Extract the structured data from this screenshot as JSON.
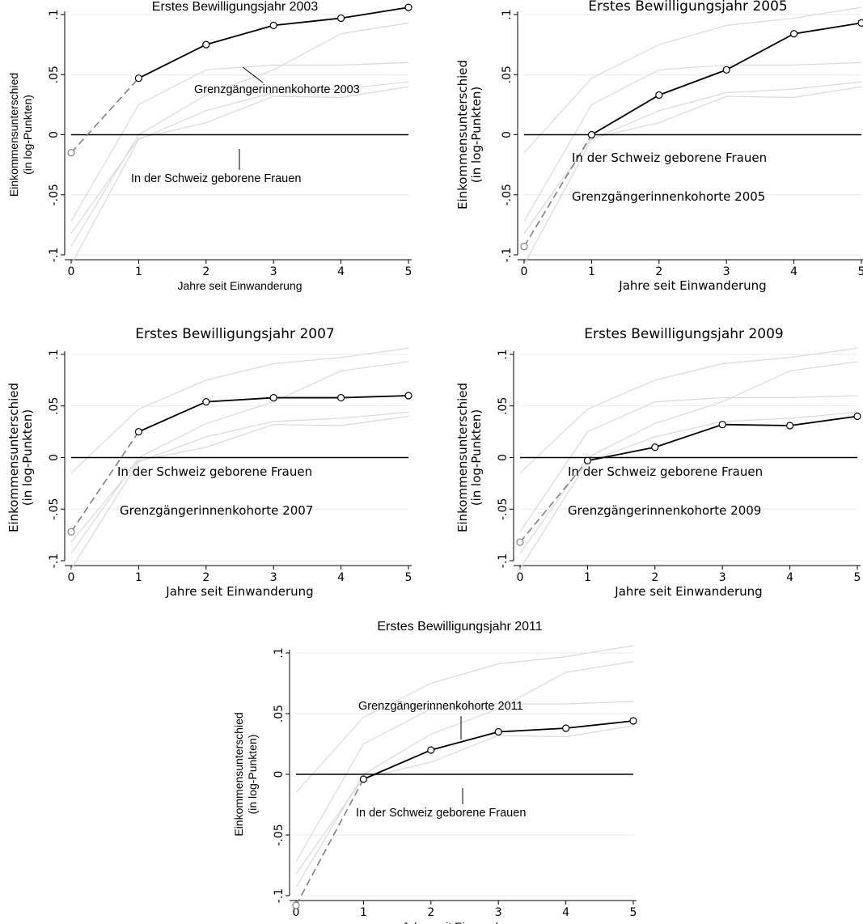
{
  "figure": {
    "ylabel_line1": "Einkommensunterschied",
    "ylabel_line2": "(in log-Punkten)",
    "xlabel": "Jahre seit Einwanderung",
    "x_ticks": [
      "0",
      "1",
      "2",
      "3",
      "4",
      "5"
    ],
    "y_ticks": [
      "-.1",
      "-.05",
      "0",
      ".05",
      ".1"
    ],
    "baseline_label": "In der Schweiz geborene Frauen",
    "colors": {
      "highlight": "#000000",
      "background_series": "#d9d9d9",
      "dashed_segment": "#7f7f7f",
      "grid": "#eaeaea"
    }
  },
  "chart_data": [
    {
      "type": "line",
      "title": "Erstes Bewilligungsjahr 2003",
      "xlabel": "Jahre seit Einwanderung",
      "ylabel": "Einkommensunterschied (in log-Punkten)",
      "x": [
        0,
        1,
        2,
        3,
        4,
        5
      ],
      "xlim": [
        0,
        5
      ],
      "ylim": [
        -0.1,
        0.1
      ],
      "highlight_series": "Grenzgängerinnenkohorte 2003",
      "cohort_label": "Grenzgängerinnenkohorte 2003",
      "baseline_label": "In der Schweiz geborene Frauen",
      "baseline": 0,
      "grid": true,
      "legend": "none",
      "series": [
        {
          "name": "Grenzgängerinnenkohorte 2003",
          "values": [
            -0.015,
            0.047,
            0.075,
            0.091,
            0.097,
            0.106
          ]
        },
        {
          "name": "Grenzgängerinnenkohorte 2005",
          "values": [
            -0.093,
            0.0,
            0.033,
            0.054,
            0.084,
            0.093
          ]
        },
        {
          "name": "Grenzgängerinnenkohorte 2007",
          "values": [
            -0.072,
            0.025,
            0.054,
            0.058,
            0.058,
            0.06
          ]
        },
        {
          "name": "Grenzgängerinnenkohorte 2009",
          "values": [
            -0.082,
            -0.003,
            0.01,
            0.032,
            0.031,
            0.04
          ]
        },
        {
          "name": "Grenzgängerinnenkohorte 2011",
          "values": [
            -0.108,
            -0.004,
            0.02,
            0.035,
            0.038,
            0.044
          ]
        }
      ]
    },
    {
      "type": "line",
      "title": "Erstes Bewilligungsjahr 2005",
      "xlabel": "Jahre seit Einwanderung",
      "ylabel": "Einkommensunterschied (in log-Punkten)",
      "x": [
        0,
        1,
        2,
        3,
        4,
        5
      ],
      "xlim": [
        0,
        5
      ],
      "ylim": [
        -0.1,
        0.1
      ],
      "highlight_series": "Grenzgängerinnenkohorte 2005",
      "cohort_label": "Grenzgängerinnenkohorte 2005",
      "baseline_label": "In der Schweiz geborene Frauen",
      "baseline": 0,
      "grid": true,
      "legend": "none",
      "series": [
        {
          "name": "Grenzgängerinnenkohorte 2003",
          "values": [
            -0.015,
            0.047,
            0.075,
            0.091,
            0.097,
            0.106
          ]
        },
        {
          "name": "Grenzgängerinnenkohorte 2005",
          "values": [
            -0.093,
            0.0,
            0.033,
            0.054,
            0.084,
            0.093
          ]
        },
        {
          "name": "Grenzgängerinnenkohorte 2007",
          "values": [
            -0.072,
            0.025,
            0.054,
            0.058,
            0.058,
            0.06
          ]
        },
        {
          "name": "Grenzgängerinnenkohorte 2009",
          "values": [
            -0.082,
            -0.003,
            0.01,
            0.032,
            0.031,
            0.04
          ]
        },
        {
          "name": "Grenzgängerinnenkohorte 2011",
          "values": [
            -0.108,
            -0.004,
            0.02,
            0.035,
            0.038,
            0.044
          ]
        }
      ]
    },
    {
      "type": "line",
      "title": "Erstes Bewilligungsjahr 2007",
      "xlabel": "Jahre seit Einwanderung",
      "ylabel": "Einkommensunterschied (in log-Punkten)",
      "x": [
        0,
        1,
        2,
        3,
        4,
        5
      ],
      "xlim": [
        0,
        5
      ],
      "ylim": [
        -0.1,
        0.1
      ],
      "highlight_series": "Grenzgängerinnenkohorte 2007",
      "cohort_label": "Grenzgängerinnenkohorte 2007",
      "baseline_label": "In der Schweiz geborene Frauen",
      "baseline": 0,
      "grid": true,
      "legend": "none",
      "series": [
        {
          "name": "Grenzgängerinnenkohorte 2003",
          "values": [
            -0.015,
            0.047,
            0.075,
            0.091,
            0.097,
            0.106
          ]
        },
        {
          "name": "Grenzgängerinnenkohorte 2005",
          "values": [
            -0.093,
            0.0,
            0.033,
            0.054,
            0.084,
            0.093
          ]
        },
        {
          "name": "Grenzgängerinnenkohorte 2007",
          "values": [
            -0.072,
            0.025,
            0.054,
            0.058,
            0.058,
            0.06
          ]
        },
        {
          "name": "Grenzgängerinnenkohorte 2009",
          "values": [
            -0.082,
            -0.003,
            0.01,
            0.032,
            0.031,
            0.04
          ]
        },
        {
          "name": "Grenzgängerinnenkohorte 2011",
          "values": [
            -0.108,
            -0.004,
            0.02,
            0.035,
            0.038,
            0.044
          ]
        }
      ]
    },
    {
      "type": "line",
      "title": "Erstes Bewilligungsjahr 2009",
      "xlabel": "Jahre seit Einwanderung",
      "ylabel": "Einkommensunterschied (in log-Punkten)",
      "x": [
        0,
        1,
        2,
        3,
        4,
        5
      ],
      "xlim": [
        0,
        5
      ],
      "ylim": [
        -0.1,
        0.1
      ],
      "highlight_series": "Grenzgängerinnenkohorte 2009",
      "cohort_label": "Grenzgängerinnenkohorte 2009",
      "baseline_label": "In der Schweiz geborene Frauen",
      "baseline": 0,
      "grid": true,
      "legend": "none",
      "series": [
        {
          "name": "Grenzgängerinnenkohorte 2003",
          "values": [
            -0.015,
            0.047,
            0.075,
            0.091,
            0.097,
            0.106
          ]
        },
        {
          "name": "Grenzgängerinnenkohorte 2005",
          "values": [
            -0.093,
            0.0,
            0.033,
            0.054,
            0.084,
            0.093
          ]
        },
        {
          "name": "Grenzgängerinnenkohorte 2007",
          "values": [
            -0.072,
            0.025,
            0.054,
            0.058,
            0.058,
            0.06
          ]
        },
        {
          "name": "Grenzgängerinnenkohorte 2009",
          "values": [
            -0.082,
            -0.003,
            0.01,
            0.032,
            0.031,
            0.04
          ]
        },
        {
          "name": "Grenzgängerinnenkohorte 2011",
          "values": [
            -0.108,
            -0.004,
            0.02,
            0.035,
            0.038,
            0.044
          ]
        }
      ]
    },
    {
      "type": "line",
      "title": "Erstes Bewilligungsjahr 2011",
      "xlabel": "Jahre seit Einwanderung",
      "ylabel": "Einkommensunterschied (in log-Punkten)",
      "x": [
        0,
        1,
        2,
        3,
        4,
        5
      ],
      "xlim": [
        0,
        5
      ],
      "ylim": [
        -0.1,
        0.1
      ],
      "highlight_series": "Grenzgängerinnenkohorte 2011",
      "cohort_label": "Grenzgängerinnenkohorte 2011",
      "baseline_label": "In der Schweiz geborene Frauen",
      "baseline": 0,
      "grid": true,
      "legend": "none",
      "series": [
        {
          "name": "Grenzgängerinnenkohorte 2003",
          "values": [
            -0.015,
            0.047,
            0.075,
            0.091,
            0.097,
            0.106
          ]
        },
        {
          "name": "Grenzgängerinnenkohorte 2005",
          "values": [
            -0.093,
            0.0,
            0.033,
            0.054,
            0.084,
            0.093
          ]
        },
        {
          "name": "Grenzgängerinnenkohorte 2007",
          "values": [
            -0.072,
            0.025,
            0.054,
            0.058,
            0.058,
            0.06
          ]
        },
        {
          "name": "Grenzgängerinnenkohorte 2009",
          "values": [
            -0.082,
            -0.003,
            0.01,
            0.032,
            0.031,
            0.04
          ]
        },
        {
          "name": "Grenzgängerinnenkohorte 2011",
          "values": [
            -0.108,
            -0.004,
            0.02,
            0.035,
            0.038,
            0.044
          ]
        }
      ]
    }
  ]
}
